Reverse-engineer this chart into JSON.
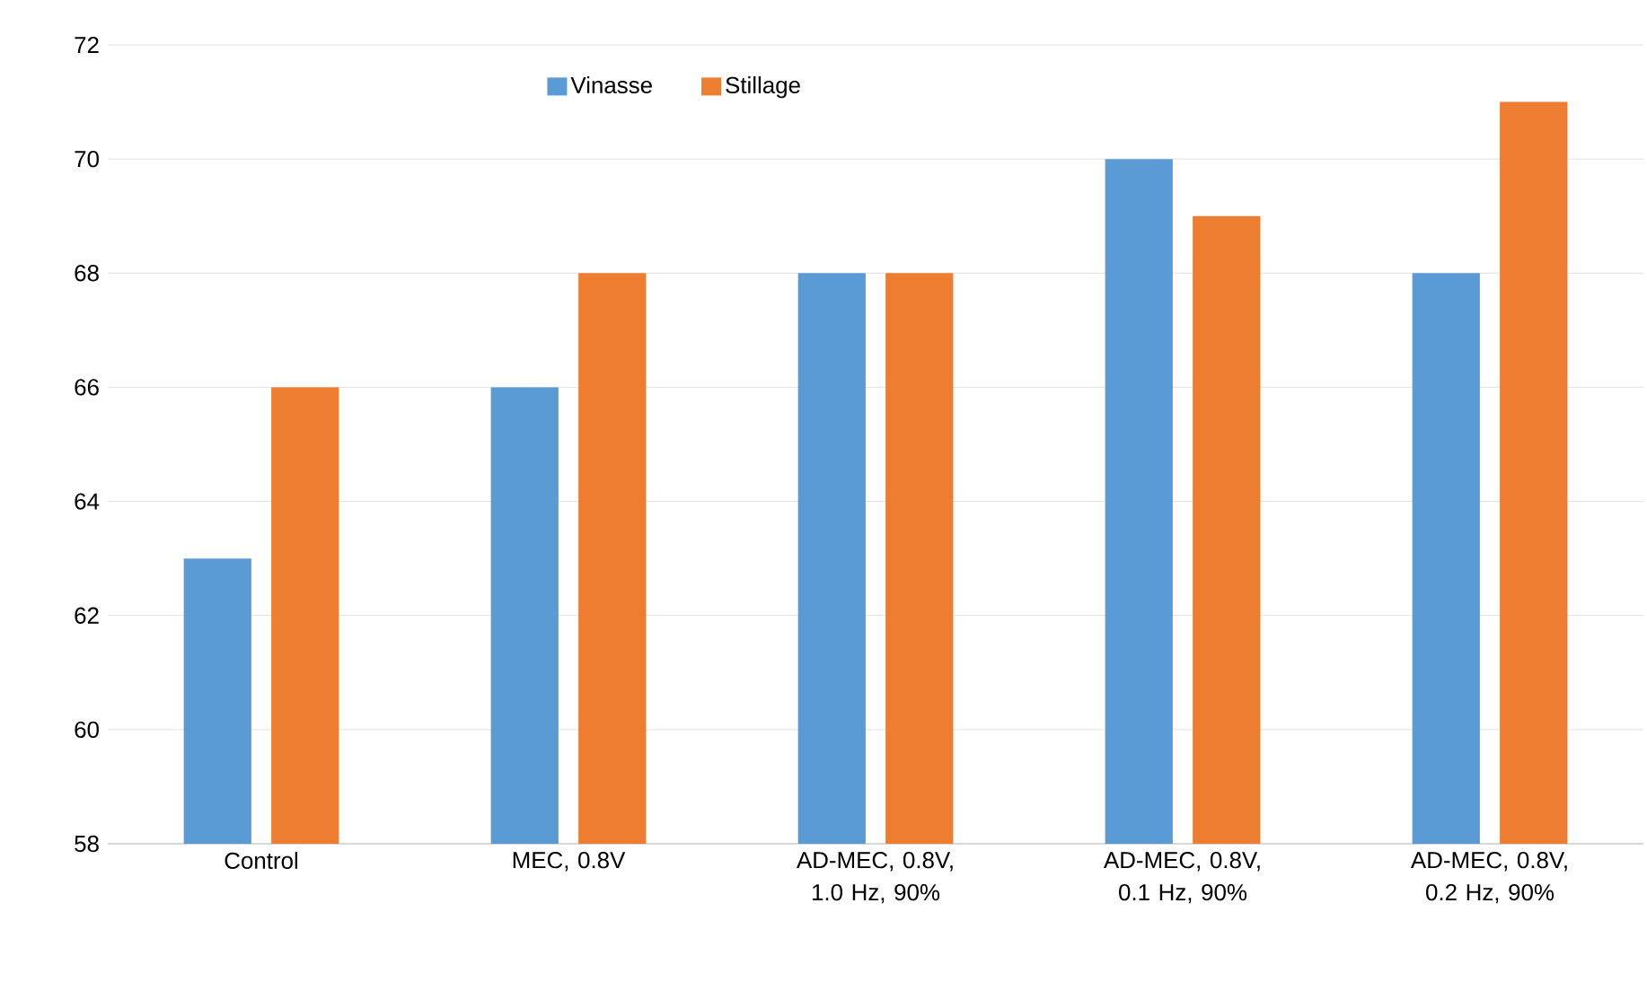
{
  "chart_data": {
    "type": "bar",
    "categories": [
      "Control",
      "MEC, 0.8V",
      "AD-MEC, 0.8V, 1.0 Hz, 90%",
      "AD-MEC, 0.8V, 0.1 Hz, 90%",
      "AD-MEC, 0.8V, 0.2 Hz, 90%"
    ],
    "series": [
      {
        "name": "Vinasse",
        "color": "#5b9bd5",
        "values": [
          63,
          66,
          68,
          70,
          68
        ]
      },
      {
        "name": "Stillage",
        "color": "#ed7d31",
        "values": [
          66,
          68,
          68,
          69,
          71
        ]
      }
    ],
    "ylim": [
      58,
      72
    ],
    "yticks": [
      58,
      60,
      62,
      64,
      66,
      68,
      70,
      72
    ],
    "grid": "y",
    "legend": "top"
  }
}
